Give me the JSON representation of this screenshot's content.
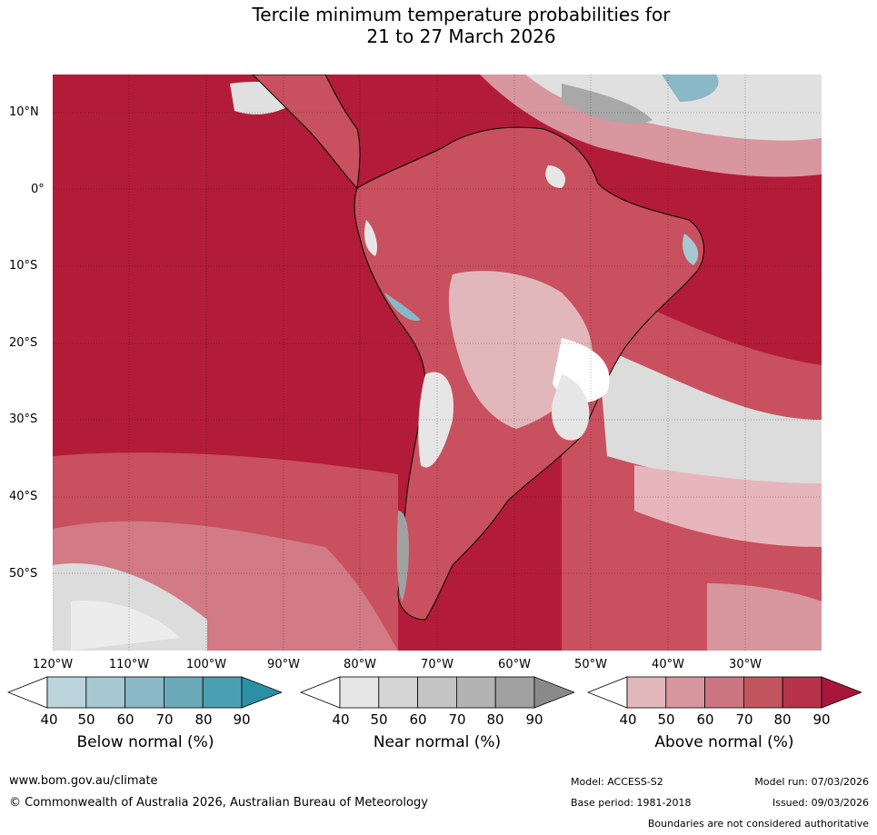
{
  "title": {
    "line1": "Tercile minimum temperature probabilities for",
    "line2": "21 to 27 March 2026"
  },
  "map": {
    "lat_labels": [
      "10°N",
      "0°",
      "10°S",
      "20°S",
      "30°S",
      "40°S",
      "50°S"
    ],
    "lon_labels": [
      "120°W",
      "110°W",
      "100°W",
      "90°W",
      "80°W",
      "70°W",
      "60°W",
      "50°W",
      "40°W",
      "30°W"
    ]
  },
  "legends": [
    {
      "name": "below-normal",
      "title": "Below normal (%)",
      "ticks": [
        "40",
        "50",
        "60",
        "70",
        "80",
        "90"
      ],
      "colors": [
        "#ffffff",
        "#bcd5dc",
        "#a5c8d1",
        "#8ab8c6",
        "#6aaab8",
        "#4aa0b2",
        "#2d8fa4"
      ]
    },
    {
      "name": "near-normal",
      "title": "Near normal (%)",
      "ticks": [
        "40",
        "50",
        "60",
        "70",
        "80",
        "90"
      ],
      "colors": [
        "#ffffff",
        "#e6e6e6",
        "#d5d5d5",
        "#c4c4c4",
        "#b3b3b3",
        "#a1a1a1",
        "#8a8a8a"
      ]
    },
    {
      "name": "above-normal",
      "title": "Above normal (%)",
      "ticks": [
        "40",
        "50",
        "60",
        "70",
        "80",
        "90"
      ],
      "colors": [
        "#ffffff",
        "#e2b7bc",
        "#d8969e",
        "#cc7683",
        "#c2555e",
        "#b6334a",
        "#a8173a"
      ]
    }
  ],
  "footer": {
    "website": "www.bom.gov.au/climate",
    "copyright": "© Commonwealth of Australia 2026, Australian Bureau of Meteorology",
    "model": "Model: ACCESS-S2",
    "base_period": "Base period: 1981-2018",
    "model_run": "Model run: 07/03/2026",
    "issued": "Issued: 09/03/2026",
    "disclaimer": "Boundaries are not considered authoritative"
  }
}
